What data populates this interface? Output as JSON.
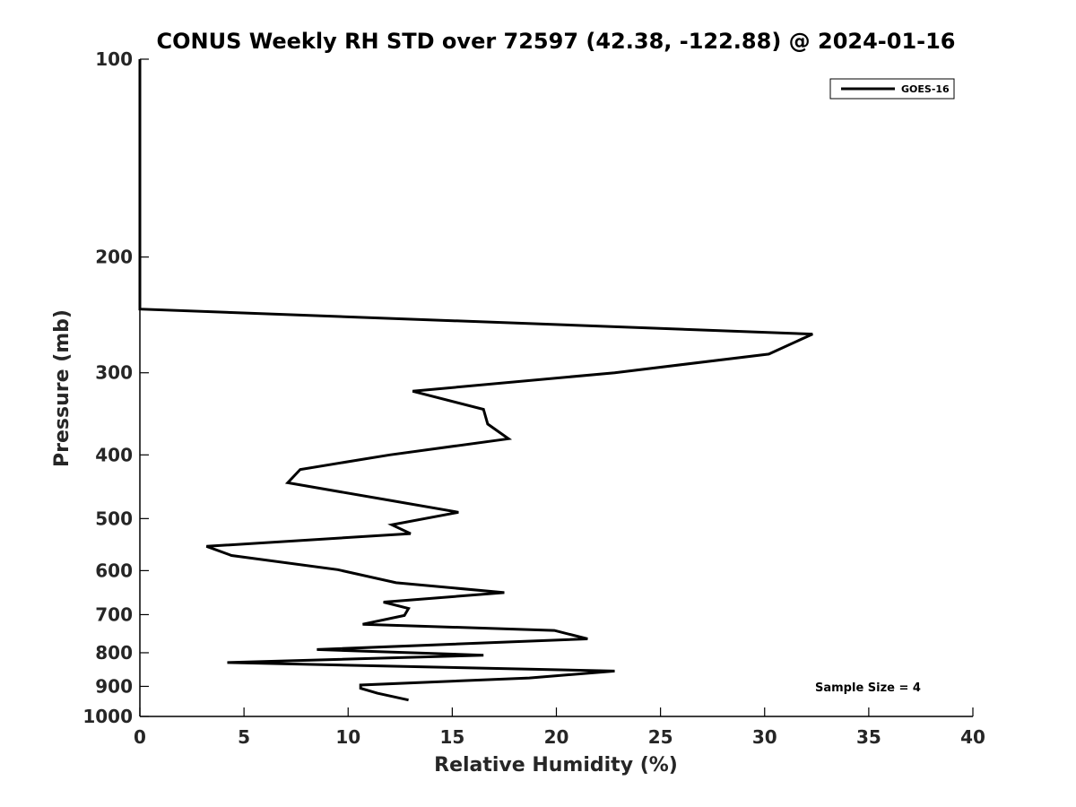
{
  "chart_data": {
    "type": "line",
    "title": "CONUS Weekly RH STD over 72597 (42.38, -122.88) @ 2024-01-16",
    "xlabel": "Relative Humidity (%)",
    "ylabel": "Pressure (mb)",
    "xlim": [
      0,
      40
    ],
    "ylim": [
      1000,
      100
    ],
    "yscale": "log",
    "y_reversed": true,
    "grid": false,
    "legend_position": "top-right",
    "x_ticks": [
      "0",
      "5",
      "10",
      "15",
      "20",
      "25",
      "30",
      "35",
      "40"
    ],
    "y_ticks": [
      "100",
      "200",
      "300",
      "400",
      "500",
      "600",
      "700",
      "800",
      "900",
      "1000"
    ],
    "series": [
      {
        "name": "GOES-16",
        "color": "#000000",
        "points": [
          {
            "rh": 0,
            "p": 100
          },
          {
            "rh": 0,
            "p": 200
          },
          {
            "rh": 0,
            "p": 240
          },
          {
            "rh": 32.3,
            "p": 262
          },
          {
            "rh": 30.2,
            "p": 281
          },
          {
            "rh": 22.8,
            "p": 300
          },
          {
            "rh": 13.1,
            "p": 320
          },
          {
            "rh": 16.5,
            "p": 341
          },
          {
            "rh": 16.7,
            "p": 359
          },
          {
            "rh": 17.7,
            "p": 378
          },
          {
            "rh": 12.0,
            "p": 400
          },
          {
            "rh": 7.7,
            "p": 421
          },
          {
            "rh": 7.1,
            "p": 441
          },
          {
            "rh": 12.0,
            "p": 469
          },
          {
            "rh": 15.3,
            "p": 489
          },
          {
            "rh": 12.1,
            "p": 511
          },
          {
            "rh": 13.0,
            "p": 527
          },
          {
            "rh": 3.2,
            "p": 551
          },
          {
            "rh": 4.4,
            "p": 569
          },
          {
            "rh": 9.5,
            "p": 598
          },
          {
            "rh": 12.3,
            "p": 626
          },
          {
            "rh": 17.5,
            "p": 648
          },
          {
            "rh": 11.7,
            "p": 670
          },
          {
            "rh": 12.9,
            "p": 685
          },
          {
            "rh": 12.7,
            "p": 702
          },
          {
            "rh": 10.7,
            "p": 724
          },
          {
            "rh": 19.9,
            "p": 740
          },
          {
            "rh": 21.5,
            "p": 762
          },
          {
            "rh": 8.5,
            "p": 791
          },
          {
            "rh": 16.5,
            "p": 807
          },
          {
            "rh": 4.2,
            "p": 828
          },
          {
            "rh": 22.8,
            "p": 853
          },
          {
            "rh": 18.7,
            "p": 874
          },
          {
            "rh": 10.6,
            "p": 896
          },
          {
            "rh": 10.6,
            "p": 906
          },
          {
            "rh": 11.4,
            "p": 922
          },
          {
            "rh": 12.9,
            "p": 944
          }
        ]
      }
    ],
    "annotations": [
      {
        "text": "Sample Size = 4",
        "position": "bottom-right"
      }
    ]
  }
}
